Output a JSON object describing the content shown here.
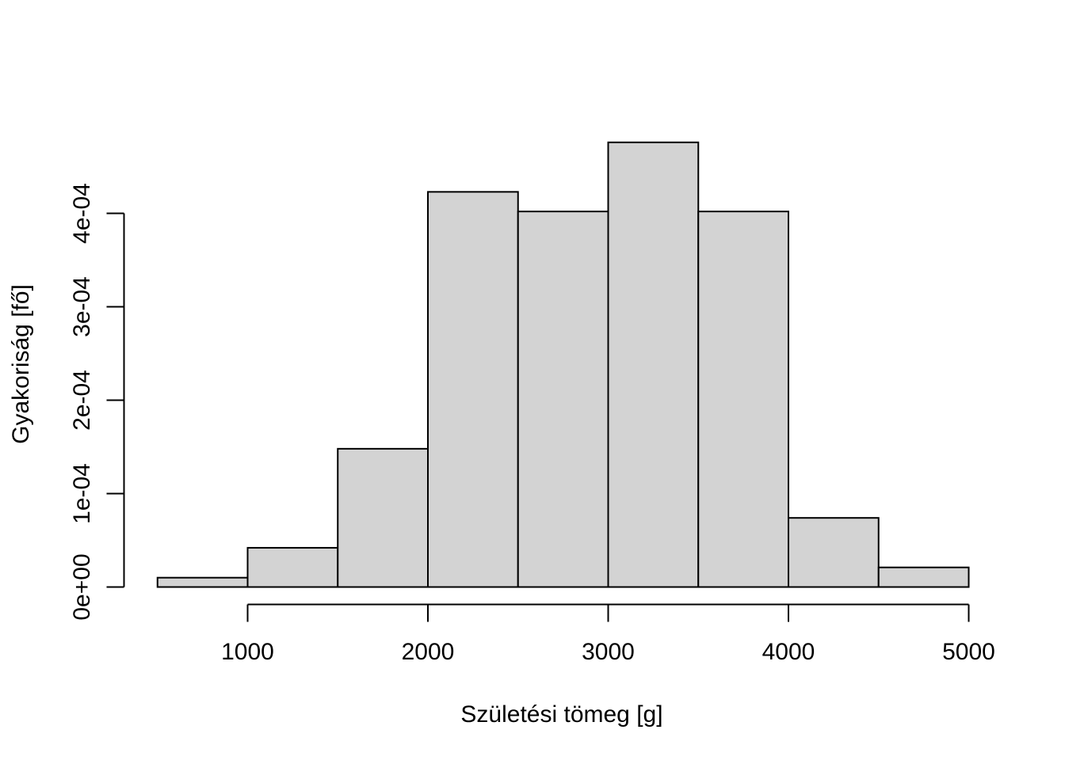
{
  "chart_data": {
    "type": "bar",
    "xlabel": "Születési tömeg [g]",
    "ylabel": "Gyakoriság [fő]",
    "xlim": [
      500,
      5000
    ],
    "ylim": [
      0,
      0.00049
    ],
    "xticks": [
      1000,
      2000,
      3000,
      4000,
      5000
    ],
    "xtick_labels": [
      "1000",
      "2000",
      "3000",
      "4000",
      "5000"
    ],
    "yticks": [
      0,
      0.0001,
      0.0002,
      0.0003,
      0.0004
    ],
    "ytick_labels": [
      "0e+00",
      "1e-04",
      "2e-04",
      "3e-04",
      "4e-04"
    ],
    "bins": [
      {
        "start": 500,
        "end": 1000,
        "value": 1e-05
      },
      {
        "start": 1000,
        "end": 1500,
        "value": 4.2e-05
      },
      {
        "start": 1500,
        "end": 2000,
        "value": 0.000148
      },
      {
        "start": 2000,
        "end": 2500,
        "value": 0.000423
      },
      {
        "start": 2500,
        "end": 3000,
        "value": 0.000402
      },
      {
        "start": 3000,
        "end": 3500,
        "value": 0.000476
      },
      {
        "start": 3500,
        "end": 4000,
        "value": 0.000402
      },
      {
        "start": 4000,
        "end": 4500,
        "value": 7.4e-05
      },
      {
        "start": 4500,
        "end": 5000,
        "value": 2.1e-05
      }
    ],
    "bar_fill": "#d3d3d3",
    "bar_stroke": "#000000",
    "grid": false
  }
}
